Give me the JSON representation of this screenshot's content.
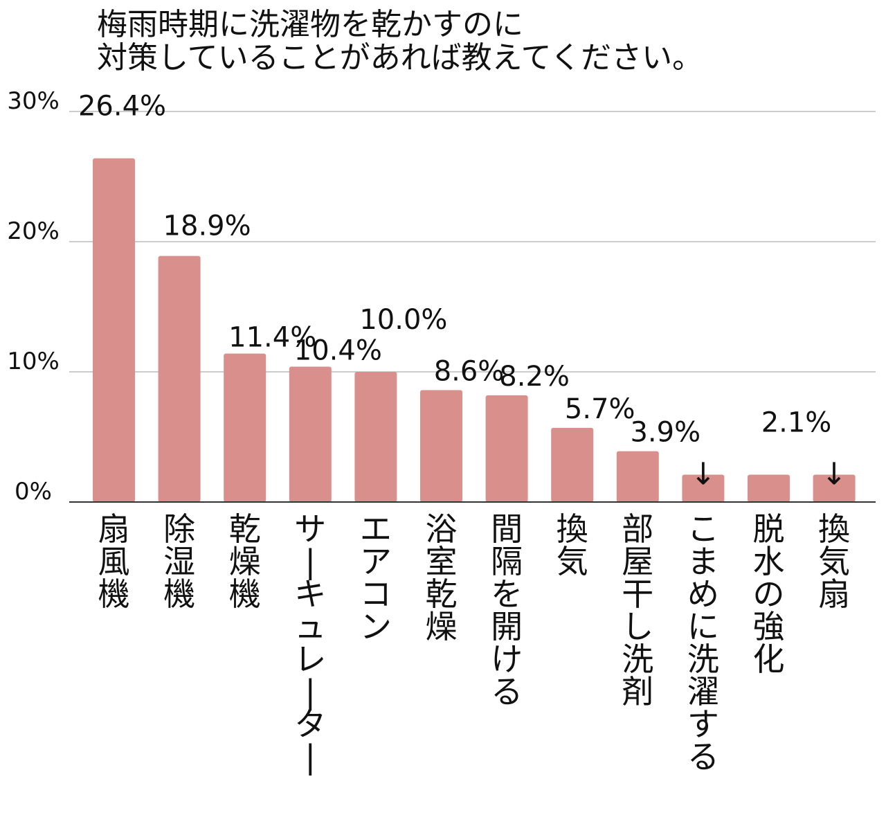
{
  "chart_data": {
    "type": "bar",
    "title_lines": [
      "梅雨時期に洗濯物を乾かすのに",
      "対策していることがあれば教えてください。"
    ],
    "categories": [
      "扇風機",
      "除湿機",
      "乾燥機",
      "サーキュレーター",
      "エアコン",
      "浴室乾燥",
      "間隔を開ける",
      "換気",
      "部屋干し洗剤",
      "こまめに洗濯する",
      "脱水の強化",
      "換気扇"
    ],
    "values": [
      26.4,
      18.9,
      11.4,
      10.4,
      10.0,
      8.6,
      8.2,
      5.7,
      3.9,
      2.1,
      2.1,
      2.1
    ],
    "data_labels": [
      "26.4%",
      "18.9%",
      "11.4%",
      "10.4%",
      "10.0%",
      "8.6%",
      "8.2%",
      "5.7%",
      "3.9%",
      "↓",
      "2.1%",
      "↓"
    ],
    "down_arrow_marks": [
      "↓",
      "↓",
      "↓"
    ],
    "y_ticks": [
      {
        "value": 0,
        "label": "0%"
      },
      {
        "value": 10,
        "label": "10%"
      },
      {
        "value": 20,
        "label": "20%"
      },
      {
        "value": 30,
        "label": "30%"
      }
    ],
    "ylim": [
      0,
      30
    ],
    "grid": true,
    "legend": "none",
    "bar_color": "#d9908c",
    "grid_color": "#cccccc",
    "axis_color": "#333333"
  }
}
